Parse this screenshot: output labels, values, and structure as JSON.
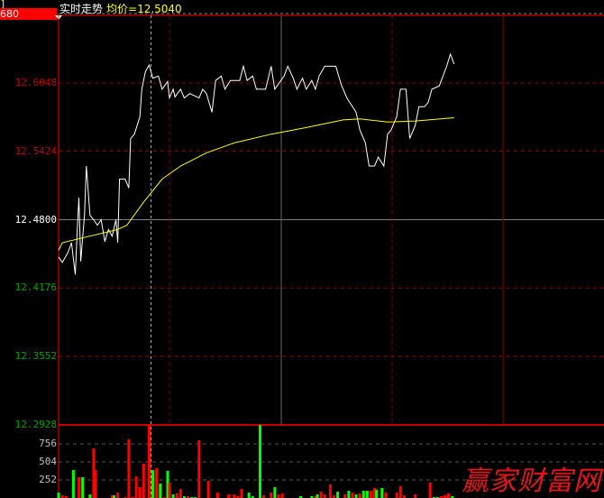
{
  "header": {
    "corner_mark": "]",
    "current_value": "680",
    "title": "实时走势",
    "avg_label": "均价=12.5040"
  },
  "colors": {
    "up": "#ff0000",
    "down": "#00ff00",
    "price_line": "#ffffff",
    "avg_line": "#ffff00",
    "up_label": "#c00000",
    "flat_label": "#ffffff",
    "down_label": "#00a000",
    "volume_label": "#c0c0c0"
  },
  "watermark": "赢家财富网",
  "chart_data": [
    {
      "type": "line",
      "title": "实时走势",
      "ylim": [
        12.2928,
        12.6672
      ],
      "xlim": [
        0,
        295
      ],
      "y_ticks": [
        {
          "label": "12.6048",
          "value": 12.6048,
          "tone": "up"
        },
        {
          "label": "12.5424",
          "value": 12.5424,
          "tone": "up"
        },
        {
          "label": "12.4800",
          "value": 12.48,
          "tone": "flat"
        },
        {
          "label": "12.4176",
          "value": 12.4176,
          "tone": "down"
        },
        {
          "label": "12.3552",
          "value": 12.3552,
          "tone": "down"
        },
        {
          "label": "12.2928",
          "value": 12.2928,
          "tone": "down"
        }
      ],
      "reference_price": 12.48,
      "crosshair_minute": 50,
      "series": [
        {
          "key": "price",
          "points": [
            [
              0,
              12.446
            ],
            [
              2,
              12.441
            ],
            [
              5,
              12.45
            ],
            [
              7,
              12.459
            ],
            [
              9,
              12.43
            ],
            [
              10,
              12.467
            ],
            [
              11,
              12.5
            ],
            [
              12,
              12.442
            ],
            [
              14,
              12.484
            ],
            [
              15,
              12.529
            ],
            [
              17,
              12.484
            ],
            [
              19,
              12.48
            ],
            [
              21,
              12.475
            ],
            [
              23,
              12.48
            ],
            [
              25,
              12.46
            ],
            [
              27,
              12.471
            ],
            [
              29,
              12.465
            ],
            [
              31,
              12.48
            ],
            [
              32,
              12.459
            ],
            [
              33,
              12.517
            ],
            [
              36,
              12.517
            ],
            [
              38,
              12.509
            ],
            [
              39,
              12.554
            ],
            [
              41,
              12.558
            ],
            [
              44,
              12.574
            ],
            [
              45,
              12.599
            ],
            [
              47,
              12.615
            ],
            [
              49,
              12.621
            ],
            [
              51,
              12.609
            ],
            [
              54,
              12.611
            ],
            [
              56,
              12.599
            ],
            [
              59,
              12.606
            ],
            [
              60,
              12.591
            ],
            [
              62,
              12.599
            ],
            [
              63,
              12.592
            ],
            [
              66,
              12.599
            ],
            [
              68,
              12.591
            ],
            [
              71,
              12.595
            ],
            [
              76,
              12.591
            ],
            [
              78,
              12.599
            ],
            [
              80,
              12.595
            ],
            [
              83,
              12.578
            ],
            [
              85,
              12.607
            ],
            [
              88,
              12.611
            ],
            [
              90,
              12.599
            ],
            [
              93,
              12.607
            ],
            [
              98,
              12.607
            ],
            [
              100,
              12.62
            ],
            [
              102,
              12.607
            ],
            [
              105,
              12.611
            ],
            [
              107,
              12.599
            ],
            [
              112,
              12.599
            ],
            [
              115,
              12.62
            ],
            [
              117,
              12.599
            ],
            [
              122,
              12.611
            ],
            [
              124,
              12.62
            ],
            [
              127,
              12.609
            ],
            [
              129,
              12.599
            ],
            [
              132,
              12.609
            ],
            [
              134,
              12.599
            ],
            [
              137,
              12.607
            ],
            [
              139,
              12.599
            ],
            [
              141,
              12.611
            ],
            [
              144,
              12.62
            ],
            [
              150,
              12.62
            ],
            [
              153,
              12.603
            ],
            [
              156,
              12.591
            ],
            [
              161,
              12.578
            ],
            [
              163,
              12.562
            ],
            [
              166,
              12.55
            ],
            [
              168,
              12.529
            ],
            [
              171,
              12.529
            ],
            [
              173,
              12.537
            ],
            [
              176,
              12.529
            ],
            [
              178,
              12.558
            ],
            [
              180,
              12.562
            ],
            [
              183,
              12.574
            ],
            [
              185,
              12.599
            ],
            [
              188,
              12.599
            ],
            [
              190,
              12.554
            ],
            [
              193,
              12.566
            ],
            [
              195,
              12.583
            ],
            [
              198,
              12.583
            ],
            [
              200,
              12.587
            ],
            [
              202,
              12.599
            ],
            [
              206,
              12.602
            ],
            [
              210,
              12.62
            ],
            [
              212,
              12.631
            ],
            [
              214,
              12.622
            ]
          ]
        },
        {
          "key": "avg",
          "points": [
            [
              0,
              12.452
            ],
            [
              2,
              12.459
            ],
            [
              17,
              12.465
            ],
            [
              32,
              12.471
            ],
            [
              37,
              12.475
            ],
            [
              46,
              12.496
            ],
            [
              56,
              12.517
            ],
            [
              66,
              12.529
            ],
            [
              80,
              12.541
            ],
            [
              95,
              12.55
            ],
            [
              115,
              12.558
            ],
            [
              134,
              12.564
            ],
            [
              154,
              12.571
            ],
            [
              163,
              12.572
            ],
            [
              178,
              12.569
            ],
            [
              193,
              12.57
            ],
            [
              214,
              12.573
            ]
          ]
        }
      ]
    },
    {
      "type": "bar",
      "ylim": [
        0,
        1008
      ],
      "y_ticks": [
        "756",
        "504",
        "252"
      ],
      "bars": [
        [
          0,
          76,
          "g"
        ],
        [
          2,
          38,
          "r"
        ],
        [
          4,
          25,
          "r"
        ],
        [
          8,
          390,
          "g"
        ],
        [
          11,
          290,
          "r"
        ],
        [
          13,
          290,
          "g"
        ],
        [
          17,
          50,
          "g"
        ],
        [
          19,
          693,
          "r"
        ],
        [
          20,
          390,
          "r"
        ],
        [
          29,
          38,
          "r"
        ],
        [
          30,
          38,
          "g"
        ],
        [
          32,
          76,
          "r"
        ],
        [
          36,
          13,
          "r"
        ],
        [
          38,
          819,
          "r"
        ],
        [
          40,
          13,
          "r"
        ],
        [
          42,
          302,
          "r"
        ],
        [
          44,
          151,
          "r"
        ],
        [
          46,
          479,
          "r"
        ],
        [
          49,
          1100,
          "r"
        ],
        [
          51,
          390,
          "g"
        ],
        [
          53,
          416,
          "r"
        ],
        [
          55,
          202,
          "g"
        ],
        [
          57,
          13,
          "r"
        ],
        [
          59,
          378,
          "g"
        ],
        [
          60,
          214,
          "r"
        ],
        [
          62,
          50,
          "g"
        ],
        [
          64,
          63,
          "r"
        ],
        [
          66,
          126,
          "r"
        ],
        [
          68,
          25,
          "g"
        ],
        [
          70,
          25,
          "r"
        ],
        [
          72,
          13,
          "g"
        ],
        [
          74,
          13,
          "g"
        ],
        [
          76,
          806,
          "r"
        ],
        [
          81,
          239,
          "r"
        ],
        [
          86,
          76,
          "r"
        ],
        [
          92,
          50,
          "r"
        ],
        [
          95,
          50,
          "r"
        ],
        [
          97,
          25,
          "r"
        ],
        [
          99,
          126,
          "r"
        ],
        [
          103,
          76,
          "g"
        ],
        [
          105,
          25,
          "g"
        ],
        [
          109,
          1100,
          "g"
        ],
        [
          111,
          38,
          "r"
        ],
        [
          115,
          76,
          "r"
        ],
        [
          117,
          151,
          "g"
        ],
        [
          119,
          50,
          "r"
        ],
        [
          121,
          63,
          "r"
        ],
        [
          131,
          25,
          "g"
        ],
        [
          137,
          25,
          "g"
        ],
        [
          139,
          25,
          "r"
        ],
        [
          140,
          50,
          "g"
        ],
        [
          142,
          88,
          "r"
        ],
        [
          144,
          50,
          "r"
        ],
        [
          147,
          189,
          "r"
        ],
        [
          149,
          38,
          "r"
        ],
        [
          151,
          88,
          "g"
        ],
        [
          155,
          50,
          "r"
        ],
        [
          157,
          101,
          "g"
        ],
        [
          159,
          76,
          "r"
        ],
        [
          161,
          50,
          "g"
        ],
        [
          163,
          63,
          "r"
        ],
        [
          165,
          101,
          "g"
        ],
        [
          167,
          101,
          "g"
        ],
        [
          169,
          101,
          "r"
        ],
        [
          171,
          139,
          "r"
        ],
        [
          172,
          113,
          "g"
        ],
        [
          175,
          139,
          "g"
        ],
        [
          177,
          76,
          "r"
        ],
        [
          183,
          76,
          "r"
        ],
        [
          185,
          164,
          "r"
        ],
        [
          187,
          38,
          "r"
        ],
        [
          193,
          50,
          "r"
        ],
        [
          201,
          214,
          "r"
        ],
        [
          203,
          13,
          "g"
        ],
        [
          205,
          13,
          "g"
        ],
        [
          207,
          25,
          "r"
        ],
        [
          209,
          38,
          "r"
        ],
        [
          211,
          63,
          "r"
        ],
        [
          213,
          25,
          "g"
        ]
      ]
    }
  ]
}
